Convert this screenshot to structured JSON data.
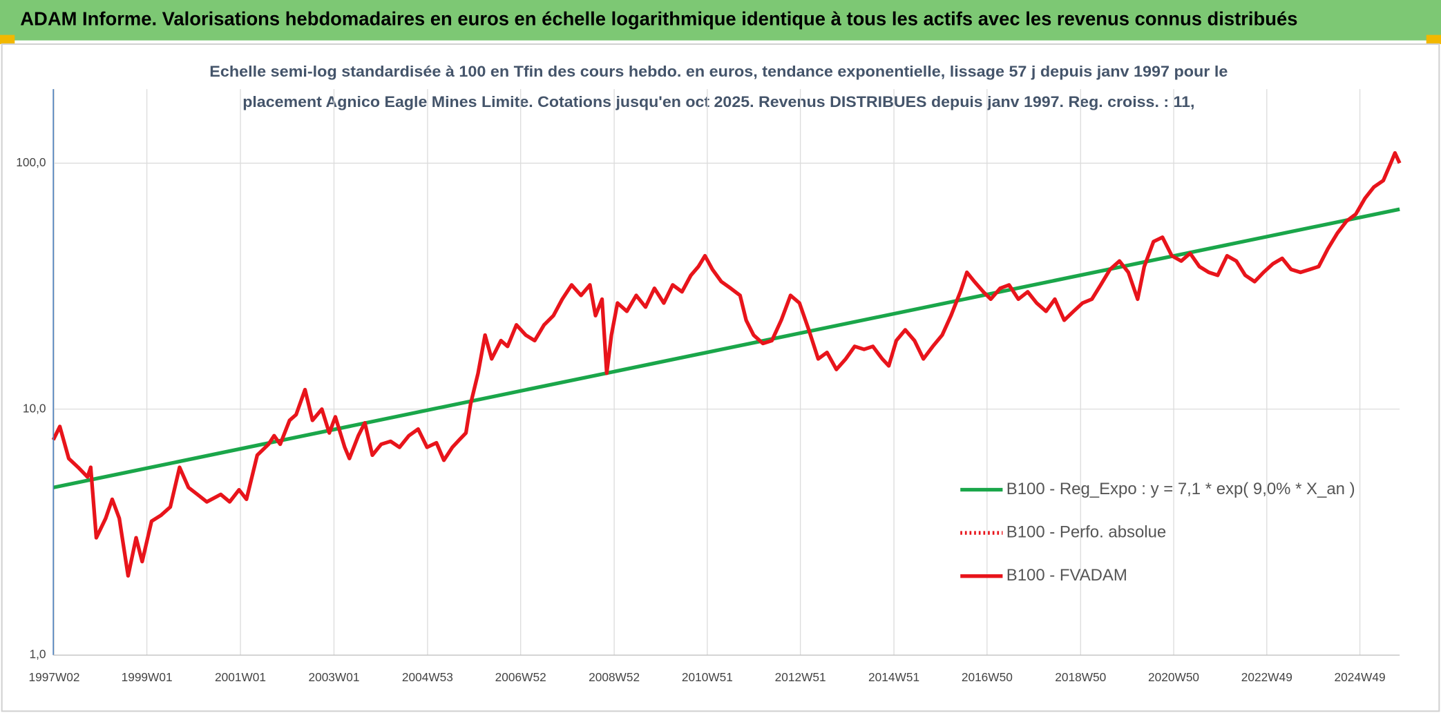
{
  "header": {
    "title": "ADAM Informe. Valorisations hebdomadaires en euros en échelle logarithmique identique à tous les actifs avec les revenus connus distribués"
  },
  "chart_data": {
    "type": "line",
    "subtitle": [
      "Echelle semi-log standardisée à 100 en Tfin des cours hebdo. en euros, tendance exponentielle, lissage 57 j depuis janv 1997 pour le",
      "placement Agnico Eagle Mines Limite. Cotations jusqu'en oct 2025. Revenus DISTRIBUES depuis janv 1997. Reg. croiss. : 11,"
    ],
    "log_scale": true,
    "grid": true,
    "legend": "lower right",
    "xlim": [
      1997.0,
      2025.78
    ],
    "xticks": [
      {
        "value": 1997.02,
        "label": "1997W02"
      },
      {
        "value": 1999.0,
        "label": "1999W01"
      },
      {
        "value": 2001.0,
        "label": "2001W01"
      },
      {
        "value": 2003.0,
        "label": "2003W01"
      },
      {
        "value": 2005.0,
        "label": "2004W53"
      },
      {
        "value": 2006.99,
        "label": "2006W52"
      },
      {
        "value": 2008.99,
        "label": "2008W52"
      },
      {
        "value": 2010.98,
        "label": "2010W51"
      },
      {
        "value": 2012.97,
        "label": "2012W51"
      },
      {
        "value": 2014.97,
        "label": "2014W51"
      },
      {
        "value": 2016.96,
        "label": "2016W50"
      },
      {
        "value": 2018.96,
        "label": "2018W50"
      },
      {
        "value": 2020.95,
        "label": "2020W50"
      },
      {
        "value": 2022.94,
        "label": "2022W49"
      },
      {
        "value": 2024.93,
        "label": "2024W49"
      }
    ],
    "ylim": [
      1,
      200
    ],
    "yticks": [
      {
        "value": 1,
        "label": "1,0"
      },
      {
        "value": 10,
        "label": "10,0"
      },
      {
        "value": 100,
        "label": "100,0"
      }
    ],
    "series": [
      {
        "name": "B100 - Reg_Expo : y = 7,1 * exp( 9,0% *  X_an )",
        "color": "#1aa64a",
        "style": "solid",
        "x": [
          1997.0,
          2025.78
        ],
        "values": [
          4.8,
          65
        ]
      },
      {
        "name": "B100 - Perfo. absolue",
        "color": "#e8141b",
        "style": "dotted",
        "x": [
          1997.0,
          1997.14,
          1997.33,
          1997.53,
          1997.73,
          1997.8,
          1997.92,
          1998.12,
          1998.26,
          1998.41,
          1998.6,
          1998.77,
          1998.9,
          1999.1,
          1999.3,
          1999.5,
          1999.7,
          1999.89,
          2000.08,
          2000.28,
          2000.58,
          2000.77,
          2000.97,
          2001.13,
          2001.36,
          2001.6,
          2001.72,
          2001.85,
          2002.05,
          2002.19,
          2002.38,
          2002.54,
          2002.74,
          2002.9,
          2003.03,
          2003.23,
          2003.33,
          2003.52,
          2003.66,
          2003.82,
          2004.01,
          2004.21,
          2004.4,
          2004.6,
          2004.8,
          2004.99,
          2005.19,
          2005.35,
          2005.53,
          2005.68,
          2005.82,
          2005.92,
          2006.08,
          2006.23,
          2006.37,
          2006.57,
          2006.71,
          2006.9,
          2007.1,
          2007.29,
          2007.49,
          2007.69,
          2007.88,
          2008.08,
          2008.28,
          2008.47,
          2008.59,
          2008.73,
          2008.83,
          2008.93,
          2009.06,
          2009.26,
          2009.46,
          2009.66,
          2009.85,
          2010.05,
          2010.24,
          2010.44,
          2010.63,
          2010.79,
          2010.93,
          2011.09,
          2011.28,
          2011.48,
          2011.68,
          2011.81,
          2011.97,
          2012.17,
          2012.36,
          2012.56,
          2012.76,
          2012.95,
          2013.15,
          2013.35,
          2013.54,
          2013.74,
          2013.94,
          2014.13,
          2014.33,
          2014.52,
          2014.72,
          2014.86,
          2015.02,
          2015.21,
          2015.41,
          2015.6,
          2015.8,
          2016.0,
          2016.19,
          2016.39,
          2016.53,
          2016.69,
          2016.88,
          2017.04,
          2017.24,
          2017.43,
          2017.63,
          2017.83,
          2018.02,
          2018.22,
          2018.41,
          2018.61,
          2018.81,
          2019.0,
          2019.2,
          2019.39,
          2019.59,
          2019.79,
          2019.98,
          2020.18,
          2020.32,
          2020.52,
          2020.71,
          2020.91,
          2021.11,
          2021.3,
          2021.5,
          2021.7,
          2021.89,
          2022.09,
          2022.29,
          2022.48,
          2022.68,
          2022.87,
          2023.07,
          2023.27,
          2023.46,
          2023.66,
          2023.86,
          2024.05,
          2024.25,
          2024.45,
          2024.64,
          2024.84,
          2025.04,
          2025.23,
          2025.43,
          2025.59,
          2025.68,
          2025.78
        ],
        "values": [
          7.5,
          8.5,
          6.3,
          5.8,
          5.3,
          5.8,
          3.0,
          3.6,
          4.3,
          3.6,
          2.1,
          3.0,
          2.4,
          3.5,
          3.7,
          4.0,
          5.8,
          4.8,
          4.5,
          4.2,
          4.5,
          4.2,
          4.7,
          4.3,
          6.5,
          7.2,
          7.8,
          7.2,
          9.0,
          9.5,
          12.0,
          9.0,
          10.0,
          8.0,
          9.3,
          7.0,
          6.3,
          7.8,
          8.8,
          6.5,
          7.2,
          7.4,
          7.0,
          7.8,
          8.3,
          7.0,
          7.3,
          6.2,
          7.0,
          7.5,
          8.0,
          10.5,
          14,
          20,
          16,
          19,
          18,
          22,
          20,
          19,
          22,
          24,
          28,
          32,
          29,
          32,
          24,
          28,
          14,
          20,
          27,
          25,
          29,
          26,
          31,
          27,
          32,
          30,
          35,
          38,
          42,
          37,
          33,
          31,
          29,
          23,
          20,
          18.5,
          19,
          23,
          29,
          27,
          21,
          16,
          17,
          14.5,
          16,
          18,
          17.5,
          18,
          16,
          15,
          19,
          21,
          19,
          16,
          18,
          20,
          24,
          30,
          36,
          33,
          30,
          28,
          31,
          32,
          28,
          30,
          27,
          25,
          28,
          23,
          25,
          27,
          28,
          32,
          37,
          40,
          36,
          28,
          38,
          48,
          50,
          42,
          40,
          43,
          38,
          36,
          35,
          42,
          40,
          35,
          33,
          36,
          39,
          41,
          37,
          36,
          37,
          38,
          45,
          52,
          58,
          62,
          72,
          80,
          85,
          100,
          110,
          100
        ]
      },
      {
        "name": "B100 - FVADAM",
        "color": "#e8141b",
        "style": "solid",
        "x": [
          1997.0,
          1997.14,
          1997.33,
          1997.53,
          1997.73,
          1997.8,
          1997.92,
          1998.12,
          1998.26,
          1998.41,
          1998.6,
          1998.77,
          1998.9,
          1999.1,
          1999.3,
          1999.5,
          1999.7,
          1999.89,
          2000.08,
          2000.28,
          2000.58,
          2000.77,
          2000.97,
          2001.13,
          2001.36,
          2001.6,
          2001.72,
          2001.85,
          2002.05,
          2002.19,
          2002.38,
          2002.54,
          2002.74,
          2002.9,
          2003.03,
          2003.23,
          2003.33,
          2003.52,
          2003.66,
          2003.82,
          2004.01,
          2004.21,
          2004.4,
          2004.6,
          2004.8,
          2004.99,
          2005.19,
          2005.35,
          2005.53,
          2005.68,
          2005.82,
          2005.92,
          2006.08,
          2006.23,
          2006.37,
          2006.57,
          2006.71,
          2006.9,
          2007.1,
          2007.29,
          2007.49,
          2007.69,
          2007.88,
          2008.08,
          2008.28,
          2008.47,
          2008.59,
          2008.73,
          2008.83,
          2008.93,
          2009.06,
          2009.26,
          2009.46,
          2009.66,
          2009.85,
          2010.05,
          2010.24,
          2010.44,
          2010.63,
          2010.79,
          2010.93,
          2011.09,
          2011.28,
          2011.48,
          2011.68,
          2011.81,
          2011.97,
          2012.17,
          2012.36,
          2012.56,
          2012.76,
          2012.95,
          2013.15,
          2013.35,
          2013.54,
          2013.74,
          2013.94,
          2014.13,
          2014.33,
          2014.52,
          2014.72,
          2014.86,
          2015.02,
          2015.21,
          2015.41,
          2015.6,
          2015.8,
          2016.0,
          2016.19,
          2016.39,
          2016.53,
          2016.69,
          2016.88,
          2017.04,
          2017.24,
          2017.43,
          2017.63,
          2017.83,
          2018.02,
          2018.22,
          2018.41,
          2018.61,
          2018.81,
          2019.0,
          2019.2,
          2019.39,
          2019.59,
          2019.79,
          2019.98,
          2020.18,
          2020.32,
          2020.52,
          2020.71,
          2020.91,
          2021.11,
          2021.3,
          2021.5,
          2021.7,
          2021.89,
          2022.09,
          2022.29,
          2022.48,
          2022.68,
          2022.87,
          2023.07,
          2023.27,
          2023.46,
          2023.66,
          2023.86,
          2024.05,
          2024.25,
          2024.45,
          2024.64,
          2024.84,
          2025.04,
          2025.23,
          2025.43,
          2025.59,
          2025.68,
          2025.78
        ],
        "values": [
          7.5,
          8.5,
          6.3,
          5.8,
          5.3,
          5.8,
          3.0,
          3.6,
          4.3,
          3.6,
          2.1,
          3.0,
          2.4,
          3.5,
          3.7,
          4.0,
          5.8,
          4.8,
          4.5,
          4.2,
          4.5,
          4.2,
          4.7,
          4.3,
          6.5,
          7.2,
          7.8,
          7.2,
          9.0,
          9.5,
          12.0,
          9.0,
          10.0,
          8.0,
          9.3,
          7.0,
          6.3,
          7.8,
          8.8,
          6.5,
          7.2,
          7.4,
          7.0,
          7.8,
          8.3,
          7.0,
          7.3,
          6.2,
          7.0,
          7.5,
          8.0,
          10.5,
          14,
          20,
          16,
          19,
          18,
          22,
          20,
          19,
          22,
          24,
          28,
          32,
          29,
          32,
          24,
          28,
          14,
          20,
          27,
          25,
          29,
          26,
          31,
          27,
          32,
          30,
          35,
          38,
          42,
          37,
          33,
          31,
          29,
          23,
          20,
          18.5,
          19,
          23,
          29,
          27,
          21,
          16,
          17,
          14.5,
          16,
          18,
          17.5,
          18,
          16,
          15,
          19,
          21,
          19,
          16,
          18,
          20,
          24,
          30,
          36,
          33,
          30,
          28,
          31,
          32,
          28,
          30,
          27,
          25,
          28,
          23,
          25,
          27,
          28,
          32,
          37,
          40,
          36,
          28,
          38,
          48,
          50,
          42,
          40,
          43,
          38,
          36,
          35,
          42,
          40,
          35,
          33,
          36,
          39,
          41,
          37,
          36,
          37,
          38,
          45,
          52,
          58,
          62,
          72,
          80,
          85,
          100,
          110,
          100
        ]
      }
    ]
  }
}
